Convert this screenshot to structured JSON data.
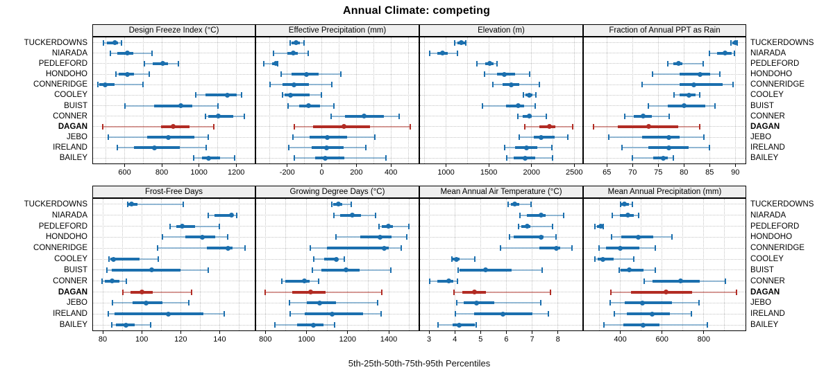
{
  "title": "Annual Climate: competing",
  "caption": "5th-25th-50th-75th-95th Percentiles",
  "sites": [
    "TUCKERDOWNS",
    "NIARADA",
    "PEDLEFORD",
    "HONDOHO",
    "CONNERIDGE",
    "COOLEY",
    "BUIST",
    "CONNER",
    "DAGAN",
    "JEBO",
    "IRELAND",
    "BAILEY"
  ],
  "highlight_site": "DAGAN",
  "colors": {
    "blue": "#1B6FAE",
    "blue_light": "rgba(27,111,174,0.45)",
    "red": "#B22C24",
    "red_light": "rgba(178,44,36,0.45)",
    "strip_bg": "#EFEFEF",
    "panel_border": "#000000",
    "grid": "#c3c3c3"
  },
  "chart_data": {
    "type": "scatter",
    "subtype": "percentile-interval-dotplot",
    "layout": {
      "rows": 2,
      "cols": 4,
      "grid": "dotted",
      "labels_both_sides": true
    },
    "percentiles": [
      5,
      25,
      50,
      75,
      95
    ],
    "panels": [
      {
        "label": "Design Freeze Index (°C)",
        "xlim": [
          430,
          1300
        ],
        "ticks": [
          600,
          800,
          1000,
          1200
        ],
        "grid": [
          500,
          600,
          700,
          800,
          900,
          1000,
          1100,
          1200
        ],
        "data": [
          [
            485,
            505,
            547,
            565,
            582
          ],
          [
            522,
            560,
            615,
            645,
            748
          ],
          [
            705,
            751,
            804,
            833,
            889
          ],
          [
            554,
            569,
            615,
            650,
            732
          ],
          [
            455,
            462,
            497,
            547,
            697
          ],
          [
            981,
            1034,
            1151,
            1204,
            1229
          ],
          [
            602,
            760,
            902,
            965,
            1103
          ],
          [
            1035,
            1050,
            1105,
            1185,
            1245
          ],
          [
            484,
            795,
            862,
            950,
            1078
          ],
          [
            514,
            723,
            836,
            977,
            1050
          ],
          [
            560,
            650,
            760,
            896,
            1038
          ],
          [
            971,
            1015,
            1050,
            1113,
            1191
          ]
        ]
      },
      {
        "label": "Effective Precipitation (mm)",
        "xlim": [
          -380,
          560
        ],
        "ticks": [
          -200,
          0,
          200,
          400
        ],
        "grid": [
          -300,
          -200,
          -100,
          0,
          100,
          200,
          300,
          400,
          500
        ],
        "data": [
          [
            -185,
            -174,
            -150,
            -126,
            -103
          ],
          [
            -279,
            -201,
            -167,
            -140,
            -79
          ],
          [
            -337,
            -286,
            -267,
            -260,
            -254
          ],
          [
            -235,
            -174,
            -90,
            -18,
            112
          ],
          [
            -299,
            -229,
            -160,
            -76,
            57
          ],
          [
            -229,
            -215,
            -181,
            -69,
            -1
          ],
          [
            -197,
            -129,
            -76,
            -11,
            68
          ],
          [
            53,
            136,
            245,
            360,
            449
          ],
          [
            -160,
            -49,
            129,
            279,
            513
          ],
          [
            -167,
            -72,
            30,
            146,
            306
          ],
          [
            -190,
            -58,
            26,
            128,
            254
          ],
          [
            -158,
            -38,
            19,
            132,
            370
          ]
        ]
      },
      {
        "label": "Elevation (m)",
        "xlim": [
          695,
          2595
        ],
        "ticks": [
          1000,
          1500,
          2000,
          2500
        ],
        "grid": [
          750,
          1000,
          1250,
          1500,
          1750,
          2000,
          2250,
          2500
        ],
        "data": [
          [
            1104,
            1131,
            1179,
            1219,
            1227
          ],
          [
            805,
            898,
            960,
            1019,
            1131
          ],
          [
            1361,
            1460,
            1513,
            1559,
            1594
          ],
          [
            1452,
            1594,
            1679,
            1807,
            1976
          ],
          [
            1548,
            1660,
            1759,
            1853,
            2094
          ],
          [
            1906,
            1933,
            1976,
            2013,
            2048
          ],
          [
            1425,
            1700,
            1847,
            1914,
            2043
          ],
          [
            1842,
            1896,
            1976,
            2000,
            2174
          ],
          [
            1922,
            2088,
            2209,
            2281,
            2484
          ],
          [
            1853,
            2027,
            2115,
            2270,
            2422
          ],
          [
            1682,
            1807,
            1941,
            2070,
            2240
          ],
          [
            1708,
            1789,
            1922,
            2040,
            2249
          ]
        ]
      },
      {
        "label": "Fraction of Annual PPT as Rain",
        "xlim": [
          60.5,
          92
        ],
        "ticks": [
          65,
          70,
          75,
          80,
          85,
          90
        ],
        "grid": [
          65,
          70,
          75,
          80,
          85,
          90
        ],
        "data": [
          [
            89.1,
            89.4,
            90.0,
            90.3,
            90.4
          ],
          [
            85.0,
            86.5,
            88.0,
            89.3,
            89.9
          ],
          [
            76.9,
            78.0,
            78.9,
            79.7,
            83.7
          ],
          [
            73.9,
            79.2,
            83.1,
            85.1,
            87.0
          ],
          [
            71.8,
            79.1,
            81.9,
            87.6,
            89.6
          ],
          [
            78.1,
            79.1,
            81.0,
            82.3,
            83.1
          ],
          [
            73.1,
            76.9,
            80.0,
            84.2,
            86.0
          ],
          [
            68.5,
            70.2,
            72.0,
            73.8,
            77.1
          ],
          [
            62.4,
            67.1,
            73.1,
            78.9,
            83.1
          ],
          [
            65.4,
            71.8,
            77.0,
            79.2,
            83.9
          ],
          [
            68.0,
            73.1,
            77.0,
            80.9,
            85.0
          ],
          [
            70.0,
            74.0,
            76.0,
            76.9,
            77.9
          ]
        ]
      },
      {
        "label": "Frost-Free Days",
        "xlim": [
          75,
          158
        ],
        "ticks": [
          80,
          100,
          120,
          140
        ],
        "grid": [
          80,
          90,
          100,
          110,
          120,
          130,
          140,
          150
        ],
        "data": [
          [
            92.9,
            93.2,
            94.6,
            97.9,
            121.4
          ],
          [
            134.3,
            137.3,
            145.9,
            147.1,
            148.7
          ],
          [
            114.4,
            117.6,
            120.8,
            127.5,
            140.0
          ],
          [
            110.8,
            122.4,
            131.1,
            137.6,
            144.0
          ],
          [
            108.2,
            133.5,
            144.4,
            146.7,
            152.9
          ],
          [
            83.2,
            83.8,
            85.5,
            98.8,
            108.5
          ],
          [
            82.0,
            84.7,
            105.2,
            120.0,
            134.1
          ],
          [
            79.6,
            81.2,
            84.7,
            88.7,
            92.2
          ],
          [
            90.2,
            94.1,
            100.2,
            105.5,
            125.5
          ],
          [
            84.9,
            95.3,
            102.4,
            110.6,
            124.0
          ],
          [
            82.8,
            86.1,
            113.5,
            131.8,
            142.4
          ],
          [
            84.7,
            86.7,
            91.8,
            96.5,
            104.7
          ]
        ]
      },
      {
        "label": "Growing Degree Days (°C)",
        "xlim": [
          755,
          1545
        ],
        "ticks": [
          800,
          1000,
          1200,
          1400
        ],
        "grid": [
          800,
          900,
          1000,
          1100,
          1200,
          1300,
          1400,
          1500
        ],
        "data": [
          [
            1122,
            1130,
            1155,
            1174,
            1219
          ],
          [
            1133,
            1163,
            1222,
            1264,
            1334
          ],
          [
            1353,
            1367,
            1398,
            1420,
            1498
          ],
          [
            1144,
            1260,
            1356,
            1412,
            1487
          ],
          [
            1018,
            1100,
            1379,
            1401,
            1461
          ],
          [
            1035,
            1085,
            1144,
            1155,
            1183
          ],
          [
            1029,
            1074,
            1191,
            1258,
            1409
          ],
          [
            880,
            898,
            988,
            1015,
            1059
          ],
          [
            800,
            932,
            1021,
            1093,
            1367
          ],
          [
            917,
            1003,
            1063,
            1144,
            1347
          ],
          [
            921,
            992,
            1126,
            1275,
            1364
          ],
          [
            847,
            954,
            1032,
            1082,
            1137
          ]
        ]
      },
      {
        "label": "Mean Annual Air Temperature (°C)",
        "xlim": [
          2.65,
          8.95
        ],
        "ticks": [
          3,
          4,
          5,
          6,
          7,
          8
        ],
        "grid": [
          3,
          4,
          5,
          6,
          7,
          8
        ],
        "data": [
          [
            6.08,
            6.17,
            6.32,
            6.5,
            6.95
          ],
          [
            6.53,
            6.8,
            7.36,
            7.51,
            8.22
          ],
          [
            6.47,
            6.57,
            6.8,
            6.93,
            7.8
          ],
          [
            6.11,
            6.29,
            7.36,
            7.44,
            7.92
          ],
          [
            5.76,
            7.28,
            7.95,
            8.1,
            8.55
          ],
          [
            3.89,
            3.92,
            4.07,
            4.19,
            4.78
          ],
          [
            4.13,
            4.19,
            5.2,
            6.2,
            7.39
          ],
          [
            3.04,
            3.33,
            3.77,
            3.95,
            4.1
          ],
          [
            3.98,
            4.28,
            4.75,
            5.22,
            7.71
          ],
          [
            4.07,
            4.35,
            4.84,
            5.52,
            7.33
          ],
          [
            4.01,
            4.75,
            5.88,
            7.0,
            7.62
          ],
          [
            3.36,
            3.92,
            4.17,
            4.78,
            4.82
          ]
        ]
      },
      {
        "label": "Mean Annual Precipitation (mm)",
        "xlim": [
          225,
          1000
        ],
        "ticks": [
          400,
          600,
          800
        ],
        "grid": [
          300,
          400,
          500,
          600,
          700,
          800,
          900
        ],
        "data": [
          [
            402,
            404,
            419,
            441,
            457
          ],
          [
            360,
            397,
            435,
            463,
            488
          ],
          [
            279,
            287,
            305,
            314,
            317
          ],
          [
            358,
            404,
            485,
            558,
            646
          ],
          [
            298,
            331,
            400,
            492,
            569
          ],
          [
            279,
            290,
            317,
            367,
            466
          ],
          [
            393,
            400,
            444,
            510,
            569
          ],
          [
            514,
            554,
            690,
            781,
            905
          ],
          [
            356,
            452,
            620,
            745,
            957
          ],
          [
            353,
            422,
            507,
            649,
            778
          ],
          [
            371,
            430,
            551,
            638,
            741
          ],
          [
            320,
            415,
            510,
            587,
            818
          ]
        ]
      }
    ]
  }
}
